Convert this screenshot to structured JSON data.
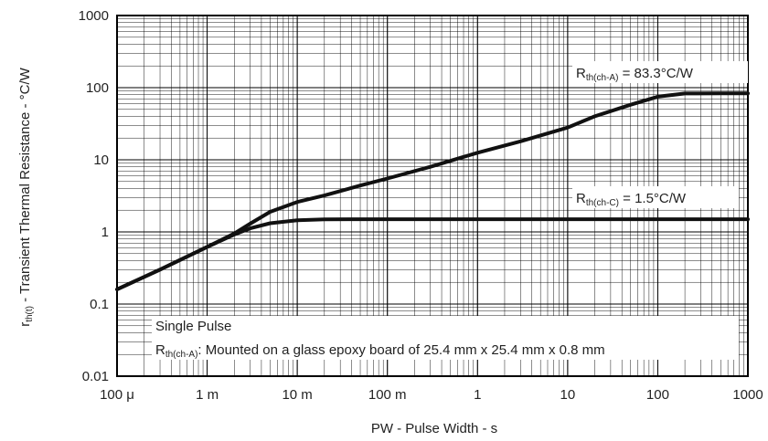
{
  "chart_data": {
    "type": "line",
    "x_scale": "log",
    "y_scale": "log",
    "xlim": [
      0.0001,
      1000
    ],
    "ylim": [
      0.01,
      1000
    ],
    "xlabel": "PW - Pulse Width - s",
    "ylabel_main": "r",
    "ylabel_sub": "th(t)",
    "ylabel_rest": " - Transient Thermal Resistance - °C/W",
    "x_ticks": [
      {
        "value": 0.0001,
        "label": "100 μ"
      },
      {
        "value": 0.001,
        "label": "1 m"
      },
      {
        "value": 0.01,
        "label": "10 m"
      },
      {
        "value": 0.1,
        "label": "100 m"
      },
      {
        "value": 1,
        "label": "1"
      },
      {
        "value": 10,
        "label": "10"
      },
      {
        "value": 100,
        "label": "100"
      },
      {
        "value": 1000,
        "label": "1000"
      }
    ],
    "y_ticks": [
      {
        "value": 0.01,
        "label": "0.01"
      },
      {
        "value": 0.1,
        "label": "0.1"
      },
      {
        "value": 1,
        "label": "1"
      },
      {
        "value": 10,
        "label": "10"
      },
      {
        "value": 100,
        "label": "100"
      },
      {
        "value": 1000,
        "label": "1000"
      }
    ],
    "grid": true,
    "series": [
      {
        "name": "Rth(ch-A) = 83.3°C/W",
        "x": [
          0.0001,
          0.0003,
          0.001,
          0.002,
          0.003,
          0.005,
          0.01,
          0.02,
          0.05,
          0.1,
          0.3,
          1,
          3,
          10,
          20,
          50,
          100,
          200,
          500,
          1000
        ],
        "y": [
          0.16,
          0.3,
          0.62,
          0.95,
          1.3,
          1.9,
          2.6,
          3.2,
          4.4,
          5.5,
          8.0,
          12.5,
          18,
          28,
          40,
          58,
          75,
          83,
          83.3,
          83.3
        ]
      },
      {
        "name": "Rth(ch-C) = 1.5°C/W",
        "x": [
          0.0001,
          0.0003,
          0.001,
          0.002,
          0.003,
          0.005,
          0.01,
          0.02,
          0.05,
          0.1,
          1,
          10,
          100,
          1000
        ],
        "y": [
          0.16,
          0.3,
          0.62,
          0.92,
          1.12,
          1.32,
          1.45,
          1.49,
          1.5,
          1.5,
          1.5,
          1.5,
          1.5,
          1.5
        ]
      }
    ],
    "annotations": {
      "ca_main": "R",
      "ca_sub": "th(ch-A)",
      "ca_rest": " = 83.3°C/W",
      "cc_main": "R",
      "cc_sub": "th(ch-C)",
      "cc_rest": " = 1.5°C/W",
      "note1": "Single Pulse",
      "note2_main": "R",
      "note2_sub": "th(ch-A)",
      "note2_rest": ": Mounted on a glass epoxy board of 25.4 mm x 25.4 mm x 0.8 mm"
    }
  }
}
